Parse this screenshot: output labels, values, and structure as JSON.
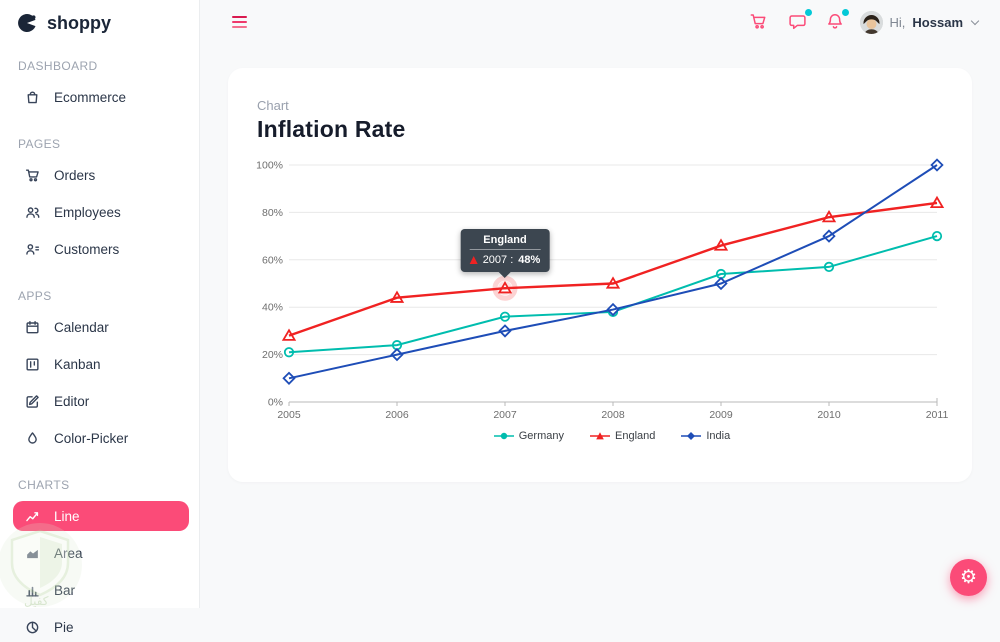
{
  "app": {
    "logo_text": "shoppy"
  },
  "sidebar": {
    "sections": [
      {
        "title": "DASHBOARD",
        "items": [
          {
            "label": "Ecommerce",
            "icon": "shopping-bag-icon",
            "active": false
          }
        ]
      },
      {
        "title": "PAGES",
        "items": [
          {
            "label": "Orders",
            "icon": "cart-icon",
            "active": false
          },
          {
            "label": "Employees",
            "icon": "employees-icon",
            "active": false
          },
          {
            "label": "Customers",
            "icon": "customers-icon",
            "active": false
          }
        ]
      },
      {
        "title": "APPS",
        "items": [
          {
            "label": "Calendar",
            "icon": "calendar-icon",
            "active": false
          },
          {
            "label": "Kanban",
            "icon": "kanban-icon",
            "active": false
          },
          {
            "label": "Editor",
            "icon": "editor-icon",
            "active": false
          },
          {
            "label": "Color-Picker",
            "icon": "droplet-icon",
            "active": false
          }
        ]
      },
      {
        "title": "CHARTS",
        "items": [
          {
            "label": "Line",
            "icon": "line-chart-icon",
            "active": true
          },
          {
            "label": "Area",
            "icon": "area-chart-icon",
            "active": false
          },
          {
            "label": "Bar",
            "icon": "bar-chart-icon",
            "active": false
          },
          {
            "label": "Pie",
            "icon": "pie-chart-icon",
            "active": false
          }
        ]
      }
    ]
  },
  "header": {
    "greeting_prefix": "Hi,",
    "username": "Hossam",
    "icons": [
      "hamburger-icon",
      "cart-icon",
      "chat-icon",
      "bell-icon",
      "chevron-down-icon"
    ]
  },
  "chart_card": {
    "subtitle": "Chart",
    "title": "Inflation Rate"
  },
  "chart_data": {
    "type": "line",
    "title": "Inflation Rate",
    "xlabel": "",
    "ylabel": "",
    "x": [
      "2005",
      "2006",
      "2007",
      "2008",
      "2009",
      "2010",
      "2011"
    ],
    "ylim": [
      0,
      100
    ],
    "yticks": [
      0,
      20,
      40,
      60,
      80,
      100
    ],
    "y_suffix": "%",
    "grid": true,
    "legend_position": "bottom",
    "series": [
      {
        "name": "Germany",
        "color": "#00bdae",
        "marker": "circle",
        "values": [
          21,
          24,
          36,
          38,
          54,
          57,
          70
        ]
      },
      {
        "name": "England",
        "color": "#f02222",
        "marker": "triangle",
        "values": [
          28,
          44,
          48,
          50,
          66,
          78,
          84
        ]
      },
      {
        "name": "India",
        "color": "#1e4db7",
        "marker": "diamond",
        "values": [
          10,
          20,
          30,
          39,
          50,
          70,
          100
        ]
      }
    ]
  },
  "tooltip": {
    "series": "England",
    "x_label": "2007 :",
    "value": "48%",
    "point_index": 2
  },
  "fab": {
    "icon": "gear-icon",
    "glyph": "⚙"
  },
  "watermark": {
    "text": "كفيل"
  },
  "colors": {
    "accent": "#fb4b78",
    "badge": "#03C9D7",
    "sidebar_text": "#2b3648",
    "title": "#161c2b"
  }
}
